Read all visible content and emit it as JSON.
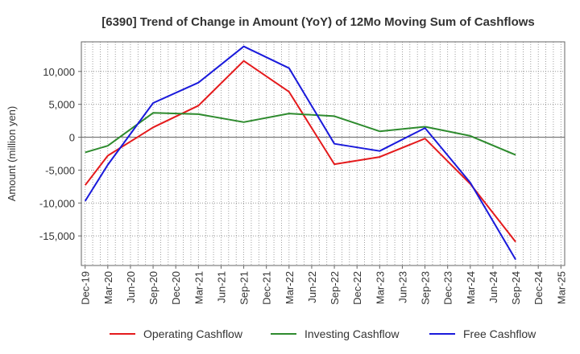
{
  "chart_data": {
    "type": "line",
    "title": "[6390]  Trend of Change in Amount (YoY) of 12Mo Moving Sum of Cashflows",
    "xlabel": "",
    "ylabel": "Amount (million yen)",
    "ylim": [
      -19500,
      14500
    ],
    "yticks": [
      10000,
      5000,
      0,
      -5000,
      -10000,
      -15000
    ],
    "ytick_labels": [
      "10,000",
      "5,000",
      "0",
      "-5,000",
      "-10,000",
      "-15,000"
    ],
    "categories": [
      "Dec-19",
      "Mar-20",
      "Jun-20",
      "Sep-20",
      "Dec-20",
      "Mar-21",
      "Jun-21",
      "Sep-21",
      "Dec-21",
      "Mar-22",
      "Jun-22",
      "Sep-22",
      "Dec-22",
      "Mar-23",
      "Jun-23",
      "Sep-23",
      "Dec-23",
      "Mar-24",
      "Jun-24",
      "Sep-24",
      "Dec-24",
      "Mar-25"
    ],
    "grid": true,
    "legend_position": "bottom",
    "series": [
      {
        "name": "Operating Cashflow",
        "color": "#e41a1c",
        "values": [
          -7300,
          -2800,
          null,
          1500,
          null,
          4800,
          null,
          11600,
          null,
          6900,
          null,
          -4100,
          null,
          -3000,
          null,
          -200,
          null,
          -7100,
          null,
          -15900,
          null,
          null
        ]
      },
      {
        "name": "Investing Cashflow",
        "color": "#2e8b2e",
        "values": [
          -2300,
          -1300,
          null,
          3700,
          null,
          3500,
          null,
          2300,
          null,
          3600,
          null,
          3200,
          null,
          900,
          null,
          1600,
          null,
          200,
          null,
          -2700,
          null,
          null
        ]
      },
      {
        "name": "Free Cashflow",
        "color": "#1a1adb",
        "values": [
          -9700,
          -4200,
          null,
          5200,
          null,
          8300,
          null,
          13800,
          null,
          10500,
          null,
          -1000,
          null,
          -2100,
          null,
          1400,
          null,
          -6900,
          null,
          -18600,
          null,
          null
        ]
      }
    ]
  }
}
